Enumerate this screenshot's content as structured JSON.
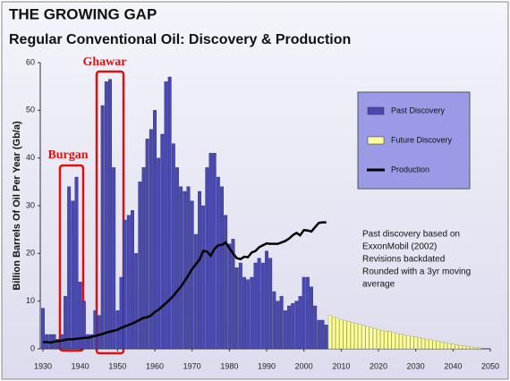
{
  "chart_data": {
    "type": "bar",
    "title": "THE GROWING GAP",
    "subtitle": "Regular Conventional Oil: Discovery & Production",
    "y_label": "Billion Barrels Of Oil Per Year (Gb/a)",
    "xlim": [
      1930,
      2050
    ],
    "xticks": [
      1930,
      1940,
      1950,
      1960,
      1970,
      1980,
      1990,
      2000,
      2010,
      2020,
      2030,
      2040,
      2050
    ],
    "ylim": [
      0,
      60
    ],
    "yticks": [
      0,
      10,
      20,
      30,
      40,
      50,
      60
    ],
    "series": [
      {
        "name": "Past Discovery",
        "color": "#4a4aae",
        "kind": "bar",
        "x": [
          1930,
          1931,
          1932,
          1933,
          1934,
          1935,
          1936,
          1937,
          1938,
          1939,
          1940,
          1941,
          1942,
          1943,
          1944,
          1945,
          1946,
          1947,
          1948,
          1949,
          1950,
          1951,
          1952,
          1953,
          1954,
          1955,
          1956,
          1957,
          1958,
          1959,
          1960,
          1961,
          1962,
          1963,
          1964,
          1965,
          1966,
          1967,
          1968,
          1969,
          1970,
          1971,
          1972,
          1973,
          1974,
          1975,
          1976,
          1977,
          1978,
          1979,
          1980,
          1981,
          1982,
          1983,
          1984,
          1985,
          1986,
          1987,
          1988,
          1989,
          1990,
          1991,
          1992,
          1993,
          1994,
          1995,
          1996,
          1997,
          1998,
          1999,
          2000,
          2001,
          2002,
          2003,
          2004,
          2005,
          2006
        ],
        "values": [
          8.5,
          3,
          3,
          3,
          2,
          3,
          11,
          34,
          31,
          36,
          14,
          10,
          3,
          3,
          8,
          7,
          51,
          56,
          56.5,
          38,
          8,
          15,
          27,
          28,
          29,
          20,
          35,
          38,
          44,
          46,
          50,
          40,
          45,
          56,
          57,
          43,
          38,
          34,
          33,
          34,
          31,
          24,
          33,
          30,
          38,
          41,
          41,
          36,
          34,
          28,
          22,
          23,
          17,
          18,
          15,
          14.5,
          15,
          18,
          19,
          18,
          20.5,
          19,
          12,
          10,
          11,
          8,
          9,
          9.5,
          10,
          11,
          15,
          15,
          13,
          9,
          6,
          6,
          5
        ]
      },
      {
        "name": "Future Discovery",
        "color": "#ffff99",
        "kind": "bar",
        "x": [
          2007,
          2008,
          2009,
          2010,
          2011,
          2012,
          2013,
          2014,
          2015,
          2016,
          2017,
          2018,
          2019,
          2020,
          2021,
          2022,
          2023,
          2024,
          2025,
          2026,
          2027,
          2028,
          2029,
          2030,
          2031,
          2032,
          2033,
          2034,
          2035,
          2036,
          2037,
          2038,
          2039,
          2040,
          2041,
          2042,
          2043,
          2044,
          2045,
          2046,
          2047
        ],
        "values": [
          7,
          6.7,
          6.4,
          6.1,
          5.9,
          5.7,
          5.5,
          5.3,
          5.1,
          4.9,
          4.7,
          4.5,
          4.3,
          4.1,
          3.9,
          3.7,
          3.6,
          3.4,
          3.2,
          3.1,
          2.9,
          2.8,
          2.6,
          2.5,
          2.3,
          2.2,
          2.0,
          1.9,
          1.7,
          1.6,
          1.4,
          1.3,
          1.1,
          1.0,
          0.8,
          0.7,
          0.6,
          0.5,
          0.4,
          0.3,
          0.2
        ]
      },
      {
        "name": "Production",
        "color": "#000000",
        "kind": "line",
        "x": [
          1930,
          1931,
          1932,
          1933,
          1934,
          1935,
          1936,
          1937,
          1938,
          1939,
          1940,
          1941,
          1942,
          1943,
          1944,
          1945,
          1946,
          1947,
          1948,
          1949,
          1950,
          1951,
          1952,
          1953,
          1954,
          1955,
          1956,
          1957,
          1958,
          1959,
          1960,
          1961,
          1962,
          1963,
          1964,
          1965,
          1966,
          1967,
          1968,
          1969,
          1970,
          1971,
          1972,
          1973,
          1974,
          1975,
          1976,
          1977,
          1978,
          1979,
          1980,
          1981,
          1982,
          1983,
          1984,
          1985,
          1986,
          1987,
          1988,
          1989,
          1990,
          1991,
          1992,
          1993,
          1994,
          1995,
          1996,
          1997,
          1998,
          1999,
          2000,
          2001,
          2002,
          2003,
          2004,
          2005,
          2006
        ],
        "values": [
          1.4,
          1.4,
          1.3,
          1.5,
          1.6,
          1.7,
          1.9,
          2.0,
          2.0,
          2.1,
          2.2,
          2.3,
          2.3,
          2.5,
          2.7,
          2.9,
          3.1,
          3.4,
          3.6,
          3.8,
          4.0,
          4.4,
          4.7,
          5.0,
          5.3,
          5.7,
          6.1,
          6.5,
          6.6,
          7.0,
          7.7,
          8.2,
          8.9,
          9.6,
          10.3,
          11.1,
          12.1,
          13.0,
          14.2,
          15.4,
          16.7,
          17.7,
          18.7,
          20.5,
          20.4,
          19.5,
          20.9,
          21.7,
          21.8,
          22.3,
          21.1,
          20.0,
          19.0,
          18.8,
          19.3,
          19.2,
          20.2,
          20.5,
          21.3,
          21.7,
          22.1,
          22.0,
          22.0,
          22.0,
          22.3,
          22.6,
          23.1,
          23.8,
          24.3,
          23.8,
          24.9,
          24.8,
          24.6,
          25.5,
          26.4,
          26.5,
          26.5
        ]
      }
    ],
    "annotations": [
      "Burgan",
      "Ghawar"
    ],
    "note": [
      "Past discovery based on",
      "ExxonMobil (2002)",
      "Revisions backdated",
      "Rounded with a 3yr moving",
      "average"
    ]
  }
}
